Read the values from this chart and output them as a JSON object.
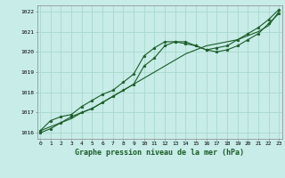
{
  "title": "Graphe pression niveau de la mer (hPa)",
  "background_color": "#c8ece8",
  "grid_color": "#a8d8cc",
  "line_color": "#1a5c28",
  "hours": [
    0,
    1,
    2,
    3,
    4,
    5,
    6,
    7,
    8,
    9,
    10,
    11,
    12,
    13,
    14,
    15,
    16,
    17,
    18,
    19,
    20,
    21,
    22,
    23
  ],
  "line1": [
    1016.1,
    1016.6,
    1016.8,
    1016.9,
    1017.3,
    1017.6,
    1017.9,
    1018.1,
    1018.5,
    1018.9,
    1019.8,
    1020.2,
    1020.5,
    1020.5,
    1020.4,
    1020.3,
    1020.1,
    1020.2,
    1020.3,
    1020.6,
    1020.9,
    1021.2,
    1021.6,
    1022.1
  ],
  "line2": [
    1016.1,
    1016.3,
    1016.5,
    1016.7,
    1017.0,
    1017.2,
    1017.5,
    1017.8,
    1018.1,
    1018.4,
    1018.7,
    1019.0,
    1019.3,
    1019.6,
    1019.9,
    1020.1,
    1020.3,
    1020.4,
    1020.5,
    1020.6,
    1020.8,
    1021.0,
    1021.3,
    1022.0
  ],
  "line3": [
    1016.0,
    1016.2,
    1016.5,
    1016.8,
    1017.0,
    1017.2,
    1017.5,
    1017.8,
    1018.1,
    1018.4,
    1019.3,
    1019.7,
    1020.3,
    1020.5,
    1020.5,
    1020.3,
    1020.1,
    1020.0,
    1020.1,
    1020.3,
    1020.6,
    1020.9,
    1021.4,
    1021.9
  ],
  "ylim": [
    1015.7,
    1022.3
  ],
  "yticks": [
    1016,
    1017,
    1018,
    1019,
    1020,
    1021,
    1022
  ],
  "xlim": [
    -0.3,
    23.3
  ],
  "xticks": [
    0,
    1,
    2,
    3,
    4,
    5,
    6,
    7,
    8,
    9,
    10,
    11,
    12,
    13,
    14,
    15,
    16,
    17,
    18,
    19,
    20,
    21,
    22,
    23
  ]
}
